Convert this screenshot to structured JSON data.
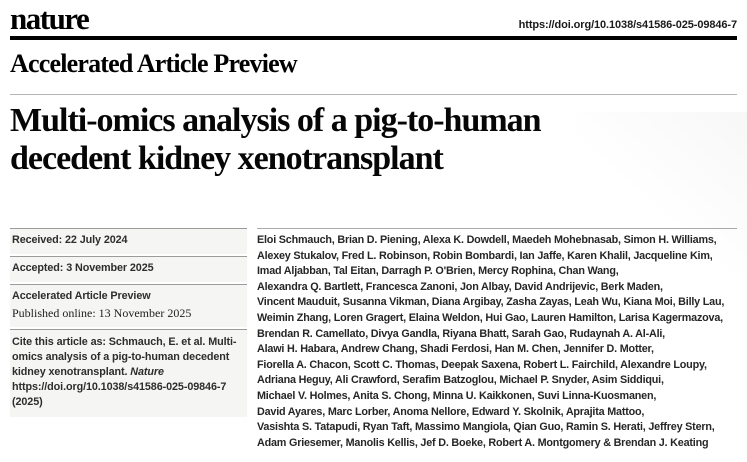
{
  "colors": {
    "brand_black": "#000000",
    "rule_gray": "#b5b5b5",
    "meta_box_background": "#f5f5f3"
  },
  "header": {
    "logo": "nature",
    "doi": "https://doi.org/10.1038/s41586-025-09846-7"
  },
  "section_heading": "Accelerated Article Preview",
  "title": {
    "line1": "Multi-omics analysis of a pig-to-human",
    "line2": "decedent kidney xenotransplant"
  },
  "meta": {
    "received": "Received: 22 July 2024",
    "accepted": "Accepted: 3 November 2025",
    "preview_label": "Accelerated Article Preview",
    "published_online": "Published online: 13 November 2025",
    "cite_prefix": "Cite this article as: Schmauch, E. et al. Multi-omics analysis of a pig-to-human decedent kidney xenotransplant. ",
    "cite_journal": "Nature",
    "cite_suffix": " https://doi.org/10.1038/s41586-025-09846-7 (2025)"
  },
  "authors": {
    "lines": [
      "Eloi Schmauch, Brian D. Piening, Alexa K. Dowdell, Maedeh Mohebnasab, Simon H. Williams,",
      "Alexey Stukalov, Fred L. Robinson, Robin Bombardi, Ian Jaffe, Karen Khalil, Jacqueline Kim,",
      "Imad Aljabban, Tal Eitan, Darragh P. O'Brien, Mercy Rophina, Chan Wang,",
      "Alexandra Q. Bartlett, Francesca Zanoni, Jon Albay, David Andrijevic, Berk Maden,",
      "Vincent Mauduit, Susanna Vikman, Diana Argibay, Zasha Zayas, Leah Wu, Kiana Moi, Billy Lau,",
      "Weimin Zhang, Loren Gragert, Elaina Weldon, Hui Gao, Lauren Hamilton, Larisa Kagermazova,",
      "Brendan R. Camellato, Divya Gandla, Riyana Bhatt, Sarah Gao, Rudaynah A. Al-Ali,",
      "Alawi H. Habara, Andrew Chang, Shadi Ferdosi, Han M. Chen, Jennifer D. Motter,",
      "Fiorella A. Chacon, Scott C. Thomas, Deepak Saxena, Robert L. Fairchild, Alexandre Loupy,",
      "Adriana Heguy, Ali Crawford, Serafim Batzoglou, Michael P. Snyder, Asim Siddiqui,",
      "Michael V. Holmes, Anita S. Chong, Minna U. Kaikkonen, Suvi Linna-Kuosmanen,",
      "David Ayares, Marc Lorber, Anoma Nellore, Edward Y. Skolnik, Aprajita Mattoo,",
      "Vasishta S. Tatapudi, Ryan Taft, Massimo Mangiola, Qian Guo, Ramin S. Herati, Jeffrey Stern,",
      "Adam Griesemer, Manolis Kellis, Jef D. Boeke, Robert A. Montgomery & Brendan J. Keating"
    ]
  }
}
